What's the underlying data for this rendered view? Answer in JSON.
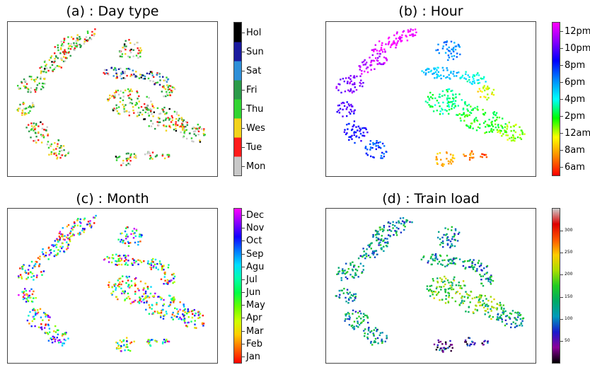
{
  "chart_data": [
    {
      "type": "scatter",
      "title": "(a) : Day type",
      "colorbar": {
        "kind": "categorical",
        "labels": [
          "Mon",
          "Tue",
          "Wes",
          "Thu",
          "Fri",
          "Sat",
          "Sun",
          "Hol"
        ],
        "colors": [
          "#c8c8c8",
          "#ff1a1a",
          "#f2d21a",
          "#31d431",
          "#2a9a48",
          "#2e8fd8",
          "#1a1a9e",
          "#000000"
        ]
      }
    },
    {
      "type": "scatter",
      "title": "(b) : Hour",
      "colorbar": {
        "kind": "continuous",
        "labels": [
          "6am",
          "8am",
          "12am",
          "2pm",
          "4pm",
          "6pm",
          "8pm",
          "10pm",
          "12pm"
        ],
        "colors": [
          "#ff0000",
          "#ff8800",
          "#ffff00",
          "#00ff00",
          "#00ffff",
          "#0088ff",
          "#0000ff",
          "#8800ff",
          "#ff00ff"
        ]
      }
    },
    {
      "type": "scatter",
      "title": "(c) : Month",
      "colorbar": {
        "kind": "continuous",
        "labels": [
          "Jan",
          "Feb",
          "Mar",
          "Apr",
          "May",
          "Jun",
          "Jul",
          "Agu",
          "Sep",
          "Oct",
          "Nov",
          "Dec"
        ],
        "colors": [
          "#ff0000",
          "#ff6600",
          "#ffcc00",
          "#ccff00",
          "#66ff00",
          "#00ff44",
          "#00ffaa",
          "#00ddff",
          "#0077ff",
          "#1100ff",
          "#8800ff",
          "#ff00ff"
        ]
      }
    },
    {
      "type": "scatter",
      "title": "(d) : Train load",
      "colorbar": {
        "kind": "continuous",
        "range": [
          0,
          350
        ],
        "ticks": [
          50,
          100,
          150,
          200,
          250,
          300
        ],
        "labels": [
          "50",
          "100",
          "150",
          "200",
          "250",
          "300"
        ],
        "colors": [
          "#000000",
          "#8a0099",
          "#1a1acc",
          "#0099bb",
          "#00aa66",
          "#22cc22",
          "#aadd00",
          "#ffcc00",
          "#ff5500",
          "#dd0000",
          "#cccccc"
        ]
      }
    }
  ]
}
